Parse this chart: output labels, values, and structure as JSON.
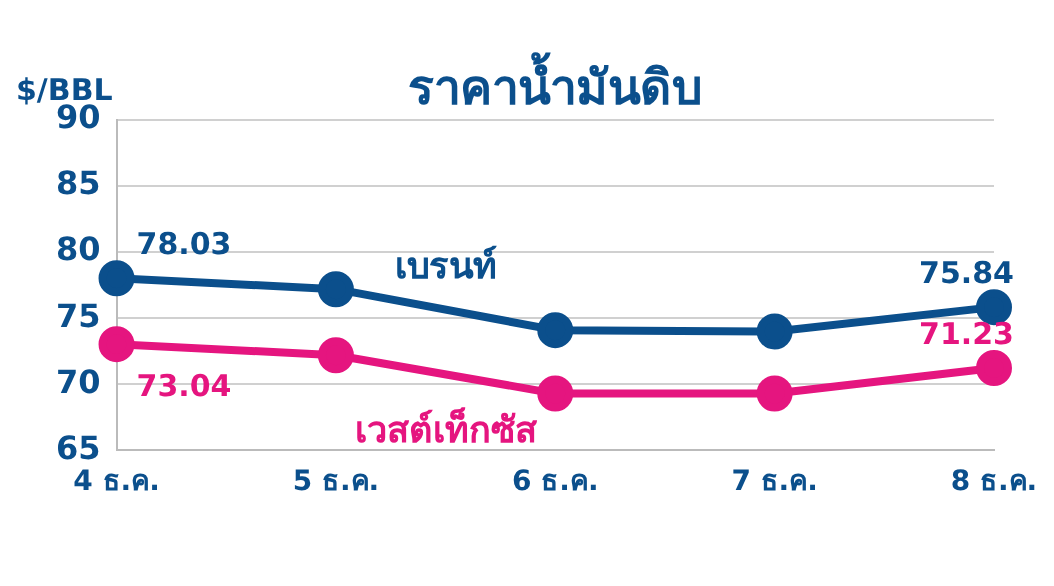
{
  "chart_data": {
    "type": "line",
    "title": "ราคาน้ำมันดิบ",
    "ylabel": "$/BBL",
    "categories": [
      "4 ธ.ค.",
      "5 ธ.ค.",
      "6 ธ.ค.",
      "7 ธ.ค.",
      "8 ธ.ค."
    ],
    "series": [
      {
        "name": "เบรนท์",
        "color": "#0b4f8c",
        "values": [
          78.03,
          77.2,
          74.1,
          74.0,
          75.84
        ],
        "value_labels": [
          "78.03",
          null,
          null,
          null,
          "75.84"
        ]
      },
      {
        "name": "เวสต์เท็กซัส",
        "color": "#e5157f",
        "values": [
          73.04,
          72.2,
          69.3,
          69.3,
          71.23
        ],
        "value_labels": [
          "73.04",
          null,
          null,
          null,
          "71.23"
        ]
      }
    ],
    "ylim": [
      65,
      90
    ],
    "yticks": [
      65,
      70,
      75,
      80,
      85,
      90
    ],
    "grid": "y",
    "legend": false,
    "marker": "circle",
    "line_style": "solid"
  }
}
